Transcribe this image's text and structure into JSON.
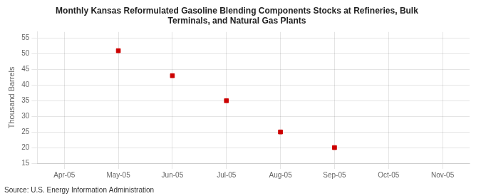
{
  "chart_data": {
    "type": "line",
    "title": "Monthly Kansas Reformulated Gasoline Blending Components Stocks at Refineries, Bulk\nTerminals, and Natural Gas Plants",
    "y_label": "Thousand Barrels",
    "source": "Source: U.S. Energy Information Administration",
    "categories": [
      "Apr-05",
      "May-05",
      "Jun-05",
      "Jul-05",
      "Aug-05",
      "Sep-05",
      "Oct-05",
      "Nov-05"
    ],
    "values": [
      null,
      51.0,
      43.0,
      35.0,
      25.0,
      20.0,
      null,
      null
    ],
    "color": "#cc0000",
    "marker": "square",
    "line_style": "none",
    "ylim": [
      15,
      57
    ],
    "yticks": [
      15,
      20,
      25,
      30,
      35,
      40,
      45,
      50,
      55
    ],
    "grid": true
  }
}
